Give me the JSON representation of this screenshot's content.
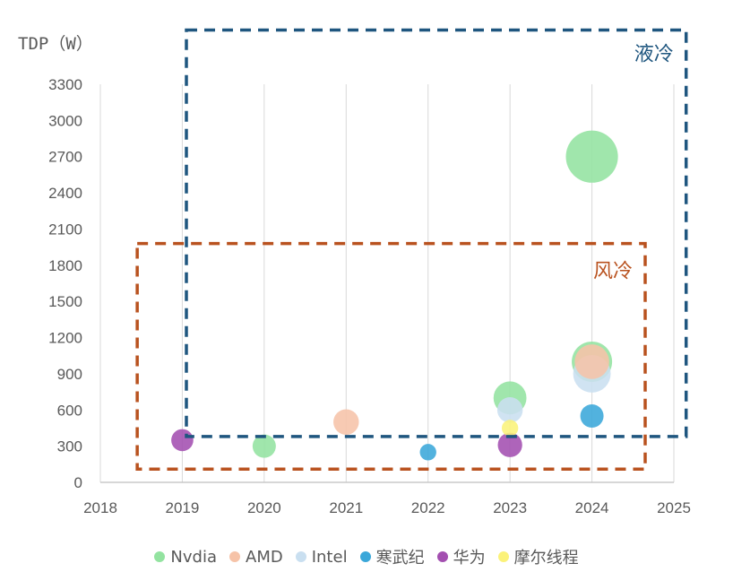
{
  "chart_data": {
    "type": "scatter",
    "bubble": true,
    "title": "",
    "ylabel": "TDP（W）",
    "xlabel": "",
    "xlim": [
      2018,
      2025
    ],
    "ylim": [
      0,
      3300
    ],
    "x_ticks": [
      2018,
      2019,
      2020,
      2021,
      2022,
      2023,
      2024,
      2025
    ],
    "y_ticks": [
      0,
      300,
      600,
      900,
      1200,
      1500,
      1800,
      2100,
      2400,
      2700,
      3000,
      3300
    ],
    "grid": "vertical",
    "legend_position": "bottom",
    "series": [
      {
        "name": "Nvdia",
        "color": "#93e3a0",
        "points": [
          {
            "x": 2020,
            "y": 300,
            "size": 1
          },
          {
            "x": 2023,
            "y": 700,
            "size": 2
          },
          {
            "x": 2024,
            "y": 1000,
            "size": 3
          },
          {
            "x": 2024,
            "y": 2700,
            "size": 5
          }
        ]
      },
      {
        "name": "AMD",
        "color": "#f6c3a8",
        "points": [
          {
            "x": 2021,
            "y": 500,
            "size": 1.2
          },
          {
            "x": 2024,
            "y": 1000,
            "size": 2.2
          }
        ]
      },
      {
        "name": "Intel",
        "color": "#c9dff0",
        "points": [
          {
            "x": 2023,
            "y": 600,
            "size": 1.2
          },
          {
            "x": 2024,
            "y": 900,
            "size": 2.6
          }
        ]
      },
      {
        "name": "寒武纪",
        "color": "#3aa7d9",
        "points": [
          {
            "x": 2022,
            "y": 250,
            "size": 0.5
          },
          {
            "x": 2024,
            "y": 550,
            "size": 1
          }
        ]
      },
      {
        "name": "华为",
        "color": "#a34fb0",
        "points": [
          {
            "x": 2019,
            "y": 350,
            "size": 0.9
          },
          {
            "x": 2023,
            "y": 310,
            "size": 1.1
          }
        ]
      },
      {
        "name": "摩尔线程",
        "color": "#fbf27a",
        "points": [
          {
            "x": 2023,
            "y": 450,
            "size": 0.5
          }
        ]
      }
    ],
    "annotations": [
      {
        "label": "液冷",
        "color": "#1f567f",
        "x_range": [
          2019.05,
          2025.15
        ],
        "y_range": [
          380,
          3750
        ]
      },
      {
        "label": "风冷",
        "color": "#b9521f",
        "x_range": [
          2018.45,
          2024.65
        ],
        "y_range": [
          110,
          1980
        ]
      }
    ]
  }
}
